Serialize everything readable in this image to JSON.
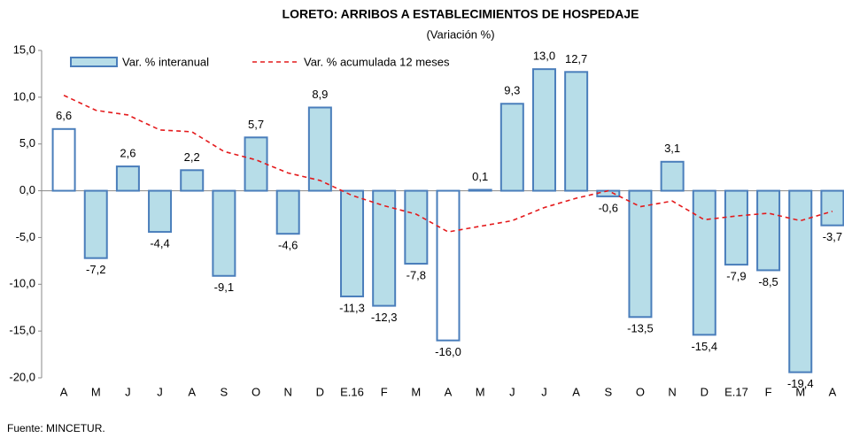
{
  "chart_data": {
    "type": "bar",
    "title": "LORETO: ARRIBOS A ESTABLECIMIENTOS DE HOSPEDAJE",
    "subtitle": "(Variación %)",
    "source": "Fuente: MINCETUR.",
    "categories": [
      "A",
      "M",
      "J",
      "J",
      "A",
      "S",
      "O",
      "N",
      "D",
      "E.16",
      "F",
      "M",
      "A",
      "M",
      "J",
      "J",
      "A",
      "S",
      "O",
      "N",
      "D",
      "E.17",
      "F",
      "M",
      "A"
    ],
    "series": [
      {
        "name": "Var. % interanual",
        "type": "bar",
        "color": "#b7dde8",
        "edge_color": "#4a7ebb",
        "bar_colors": [
          "#ffffff",
          "#b7dde8",
          "#b7dde8",
          "#b7dde8",
          "#b7dde8",
          "#b7dde8",
          "#b7dde8",
          "#b7dde8",
          "#b7dde8",
          "#b7dde8",
          "#b7dde8",
          "#b7dde8",
          "#ffffff",
          "#b7dde8",
          "#b7dde8",
          "#b7dde8",
          "#b7dde8",
          "#b7dde8",
          "#b7dde8",
          "#b7dde8",
          "#b7dde8",
          "#b7dde8",
          "#b7dde8",
          "#b7dde8",
          "#b7dde8"
        ],
        "values": [
          6.6,
          -7.2,
          2.6,
          -4.4,
          2.2,
          -9.1,
          5.7,
          -4.6,
          8.9,
          -11.3,
          -12.3,
          -7.8,
          -16.0,
          0.1,
          9.3,
          13.0,
          12.7,
          -0.6,
          -13.5,
          3.1,
          -15.4,
          -7.9,
          -8.5,
          -19.4,
          -3.7
        ],
        "value_labels": [
          "6,6",
          "-7,2",
          "2,6",
          "-4,4",
          "2,2",
          "-9,1",
          "5,7",
          "-4,6",
          "8,9",
          "-11,3",
          "-12,3",
          "-7,8",
          "-16,0",
          "0,1",
          "9,3",
          "13,0",
          "12,7",
          "-0,6",
          "-13,5",
          "3,1",
          "-15,4",
          "-7,9",
          "-8,5",
          "-19,4",
          "-3,7"
        ]
      },
      {
        "name": "Var. % acumulada 12 meses",
        "type": "line",
        "color": "#e41a1c",
        "dashed": true,
        "values": [
          10.2,
          8.6,
          8.1,
          6.5,
          6.3,
          4.2,
          3.3,
          1.9,
          1.1,
          -0.5,
          -1.6,
          -2.5,
          -4.4,
          -3.8,
          -3.2,
          -1.8,
          -0.8,
          0.0,
          -1.7,
          -1.1,
          -3.1,
          -2.7,
          -2.4,
          -3.2,
          -2.2
        ]
      }
    ],
    "ylim": [
      -20,
      15
    ],
    "yticks": [
      {
        "value": -20,
        "label": "-20,0"
      },
      {
        "value": -15,
        "label": "-15,0"
      },
      {
        "value": -10,
        "label": "-10,0"
      },
      {
        "value": -5,
        "label": "-5,0"
      },
      {
        "value": 0,
        "label": "0,0"
      },
      {
        "value": 5,
        "label": "5,0"
      },
      {
        "value": 10,
        "label": "10,0"
      },
      {
        "value": 15,
        "label": "15,0"
      }
    ],
    "grid": false
  }
}
